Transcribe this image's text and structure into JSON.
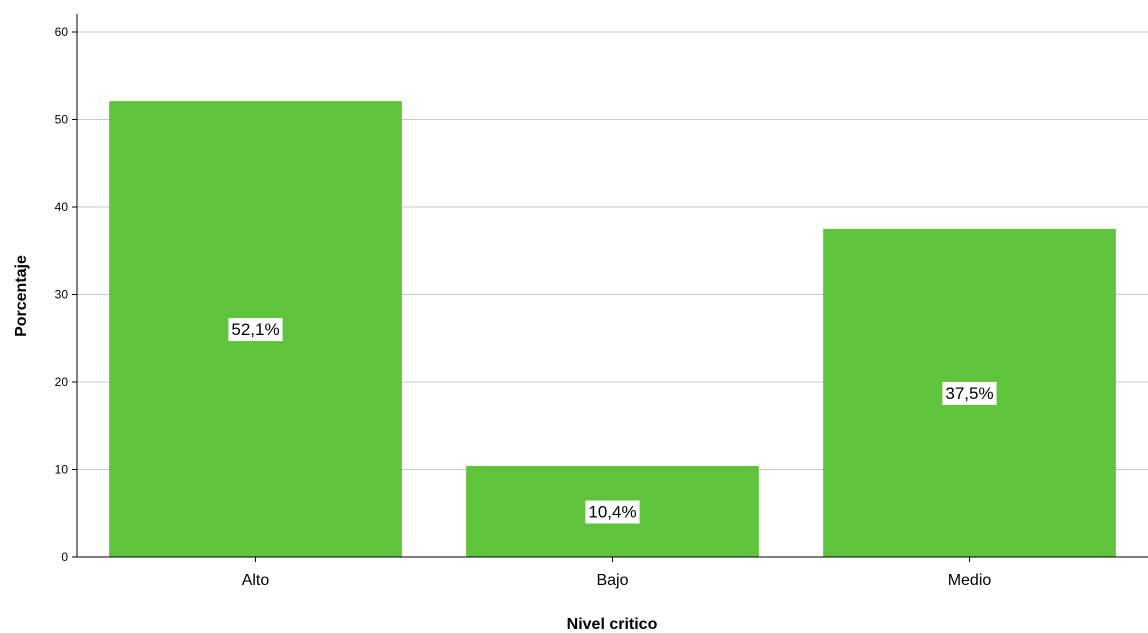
{
  "chart_data": {
    "type": "bar",
    "categories": [
      "Alto",
      "Bajo",
      "Medio"
    ],
    "values": [
      52.1,
      10.4,
      37.5
    ],
    "data_labels": [
      "52,1%",
      "10,4%",
      "37,5%"
    ],
    "xlabel": "Nivel critico",
    "ylabel": "Porcentaje",
    "ylim": [
      0,
      60
    ],
    "yticks": [
      0,
      10,
      20,
      30,
      40,
      50,
      60
    ],
    "grid": true,
    "bar_color": "#5fc43b",
    "gridline_color": "#c8c8c8"
  }
}
